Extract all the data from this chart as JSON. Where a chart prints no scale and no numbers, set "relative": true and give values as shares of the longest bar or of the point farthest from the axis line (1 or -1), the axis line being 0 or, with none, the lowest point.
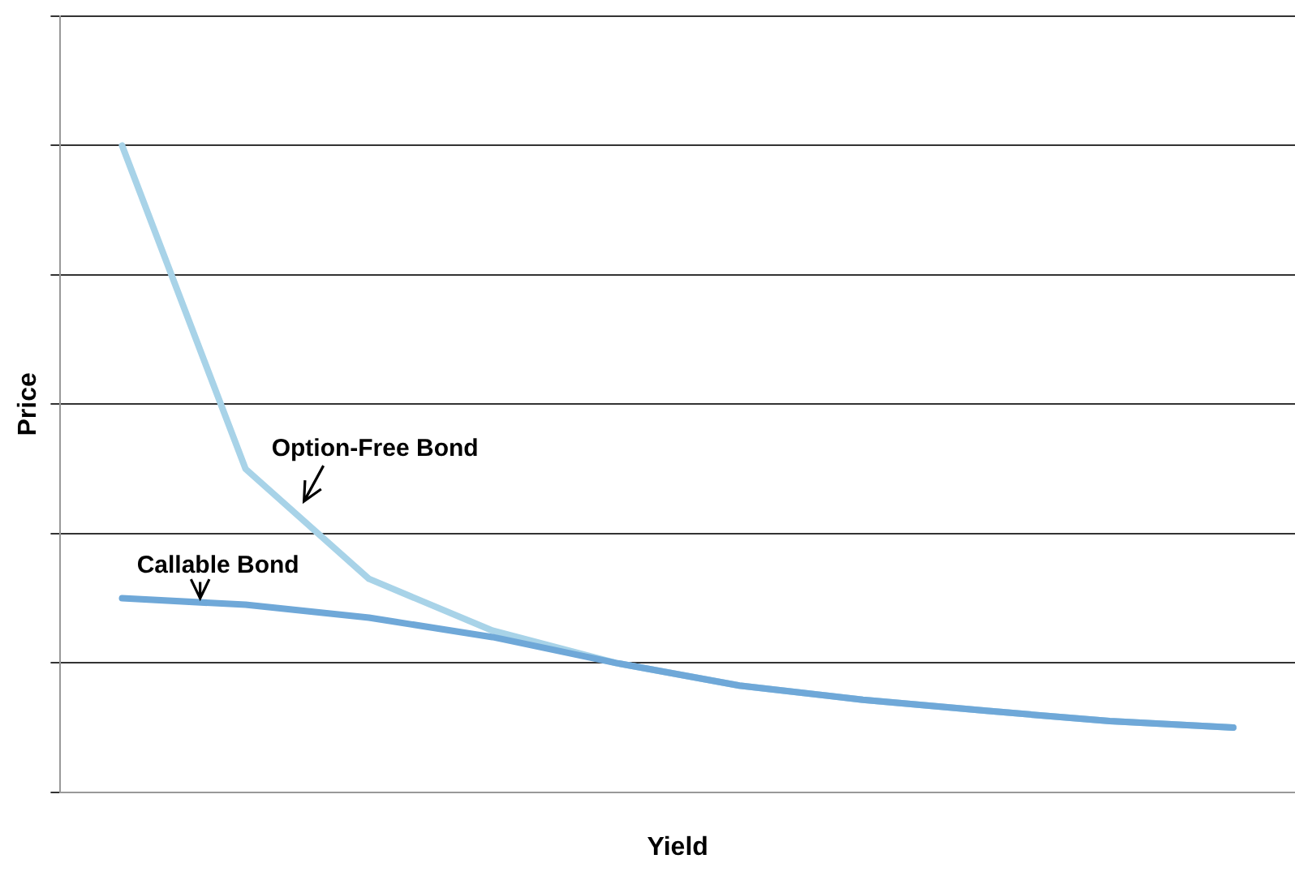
{
  "chart_data": {
    "type": "line",
    "xlabel": "Yield",
    "ylabel": "Price",
    "relative": true,
    "grid": "y",
    "legend": false,
    "marker": "none",
    "categories": [
      null,
      null,
      null,
      null,
      null,
      null,
      null,
      null,
      null,
      null
    ],
    "series": [
      {
        "name": "Option-Free Bond",
        "color": "#a8d3e8",
        "values": [
          1,
          0.5,
          0.33,
          0.25,
          0.2,
          0.165,
          0.143,
          0.126,
          0.11,
          0.1
        ]
      },
      {
        "name": "Callable Bond",
        "color": "#6fa8d8",
        "values": [
          0.3,
          0.29,
          0.27,
          0.24,
          0.2,
          0.165,
          0.143,
          0.126,
          0.11,
          0.1
        ]
      }
    ]
  }
}
